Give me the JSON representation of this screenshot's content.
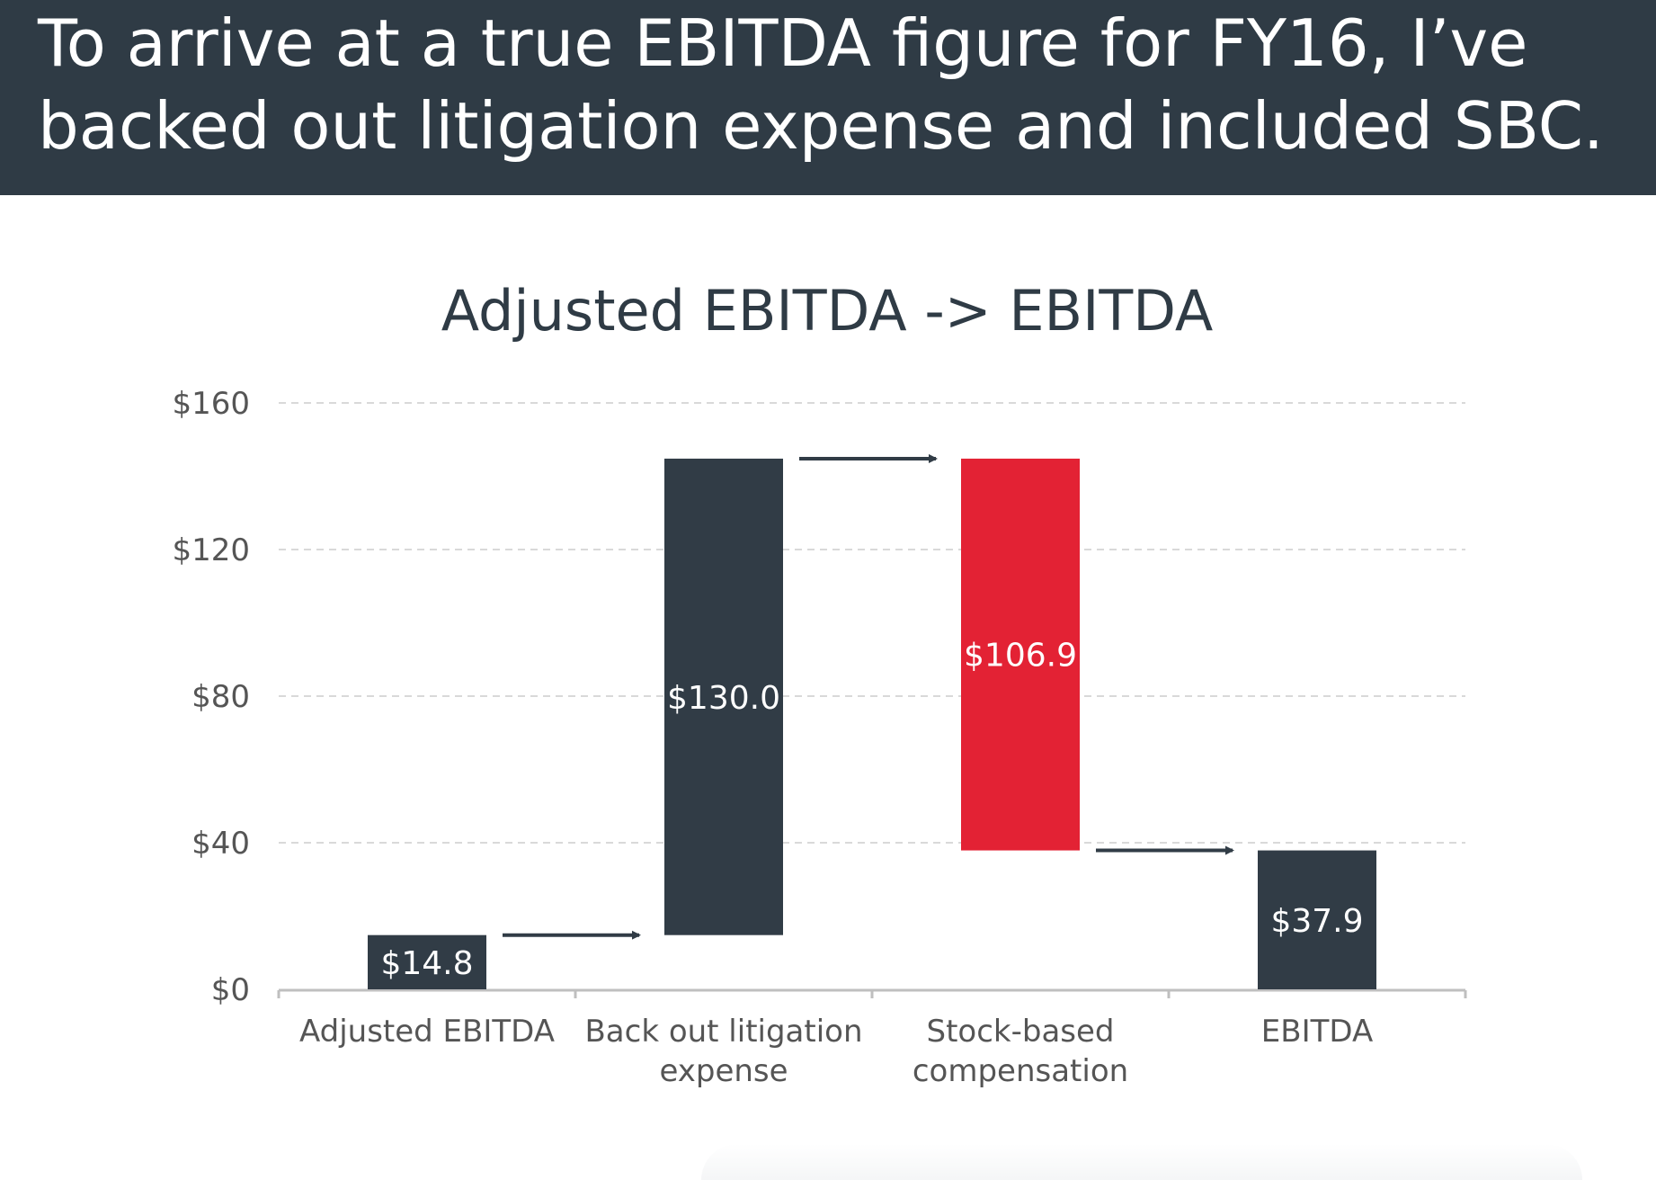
{
  "banner": {
    "line1": "To arrive at a true EBITDA figure for FY16, I’ve",
    "line2": "backed out litigation expense and included SBC."
  },
  "colors": {
    "banner_bg": "#2f3b45",
    "dark_bar": "#313c46",
    "red_bar": "#e32234",
    "axis_text": "#555555",
    "title_text": "#2f3b45",
    "gridline": "#d9d9d9"
  },
  "chart_data": {
    "type": "bar",
    "subtype": "waterfall",
    "title": "Adjusted EBITDA -> EBITDA",
    "xlabel": "",
    "ylabel": "",
    "ylim": [
      0,
      160
    ],
    "yticks": [
      0,
      40,
      80,
      120,
      160
    ],
    "ytick_labels": [
      "$0",
      "$40",
      "$80",
      "$120",
      "$160"
    ],
    "grid": true,
    "categories": [
      [
        "Adjusted EBITDA"
      ],
      [
        "Back out litigation",
        "expense"
      ],
      [
        "Stock-based",
        "compensation"
      ],
      [
        "EBITDA"
      ]
    ],
    "bars": [
      {
        "start": 0,
        "end": 14.8,
        "label": "$14.8",
        "color": "dark"
      },
      {
        "start": 14.8,
        "end": 144.8,
        "label": "$130.0",
        "color": "dark"
      },
      {
        "start": 144.8,
        "end": 37.9,
        "label": "$106.9",
        "color": "red"
      },
      {
        "start": 0,
        "end": 37.9,
        "label": "$37.9",
        "color": "dark"
      }
    ],
    "arrows": [
      {
        "from_bar": 0,
        "to_bar": 1,
        "level": 14.8
      },
      {
        "from_bar": 1,
        "to_bar": 2,
        "level": 144.8
      },
      {
        "from_bar": 2,
        "to_bar": 3,
        "level": 37.9
      }
    ]
  }
}
